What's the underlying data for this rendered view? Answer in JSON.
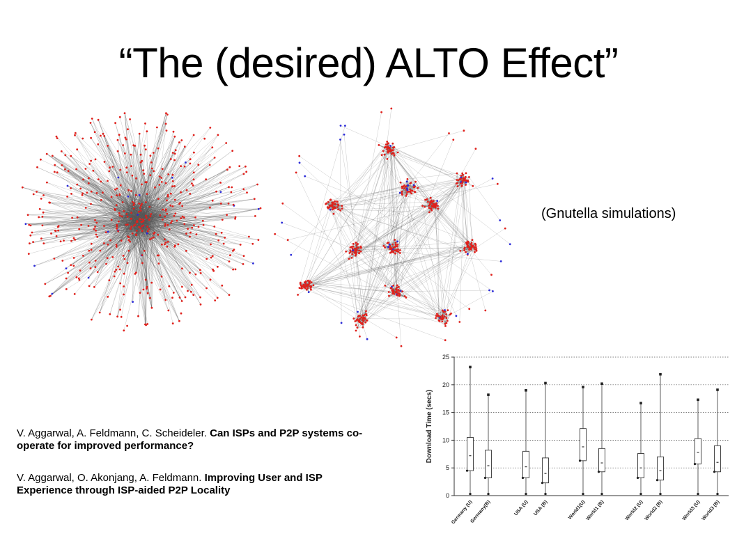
{
  "slide": {
    "title": "“The (desired) ALTO Effect”",
    "caption": "(Gnutella simulations)",
    "references": [
      {
        "plain": "V. Aggarwal, A. Feldmann, C. Scheideler. ",
        "bold": "Can ISPs and P2P systems co-operate for improved performance?"
      },
      {
        "plain": "V. Aggarwal, O. Akonjang, A. Feldmann. ",
        "bold": "Improving User and ISP Experience through ISP-aided P2P Locality"
      }
    ]
  },
  "colors": {
    "peer_node": "#e0201b",
    "ultrapeer_node": "#2a2ad8",
    "edge": "#555555"
  },
  "chart_data": {
    "type": "box",
    "ylabel": "Download Time (secs)",
    "ylim": [
      0,
      25
    ],
    "yticks": [
      0,
      5,
      10,
      15,
      20,
      25
    ],
    "grid": "horizontal dotted",
    "categories": [
      "Germany (U)",
      "Germany(B)",
      "USA (U)",
      "USA (B)",
      "World1(U)",
      "World1 (B)",
      "World2 (U)",
      "World2 (B)",
      "World3 (U)",
      "World3 (B)"
    ],
    "boxes": [
      {
        "min": 0.3,
        "q1": 4.5,
        "median": 7.2,
        "q3": 10.5,
        "max": 23.2
      },
      {
        "min": 0.3,
        "q1": 3.2,
        "median": 5.4,
        "q3": 8.2,
        "max": 18.2
      },
      {
        "min": 0.3,
        "q1": 3.2,
        "median": 5.2,
        "q3": 8.0,
        "max": 19.0
      },
      {
        "min": 0.3,
        "q1": 2.3,
        "median": 4.0,
        "q3": 6.8,
        "max": 20.3
      },
      {
        "min": 0.3,
        "q1": 6.3,
        "median": 8.8,
        "q3": 12.1,
        "max": 19.6
      },
      {
        "min": 0.3,
        "q1": 4.3,
        "median": 5.9,
        "q3": 8.5,
        "max": 20.2
      },
      {
        "min": 0.3,
        "q1": 3.2,
        "median": 5.0,
        "q3": 7.6,
        "max": 16.7
      },
      {
        "min": 0.3,
        "q1": 2.8,
        "median": 4.5,
        "q3": 7.0,
        "max": 21.9
      },
      {
        "min": 0.3,
        "q1": 5.7,
        "median": 7.8,
        "q3": 10.3,
        "max": 17.3
      },
      {
        "min": 0.3,
        "q1": 4.3,
        "median": 6.0,
        "q3": 9.0,
        "max": 19.1
      }
    ]
  }
}
